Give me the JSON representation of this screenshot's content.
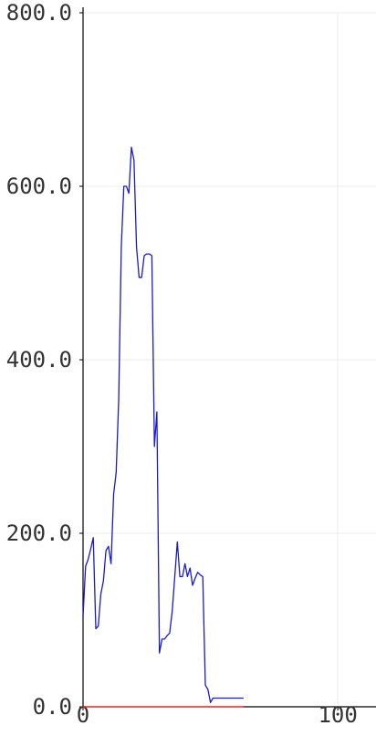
{
  "chart_data": {
    "type": "line",
    "title": "",
    "xlabel": "",
    "ylabel": "",
    "xlim": [
      0,
      115
    ],
    "ylim": [
      0,
      800
    ],
    "grid": true,
    "x_ticks": [
      0,
      100
    ],
    "x_tick_labels": [
      "0",
      "100"
    ],
    "y_ticks": [
      0,
      200,
      400,
      600,
      800
    ],
    "y_tick_labels": [
      "0.0",
      "200.0",
      "400.0",
      "600.0",
      "800.0"
    ],
    "series": [
      {
        "color": "#1a1acc",
        "x": [
          0,
          1,
          2,
          3,
          4,
          5,
          6,
          7,
          8,
          9,
          10,
          11,
          12,
          13,
          14,
          15,
          16,
          17,
          18,
          19,
          20,
          21,
          22,
          23,
          24,
          25,
          26,
          27,
          28,
          29,
          30,
          31,
          32,
          33,
          34,
          35,
          36,
          37,
          38,
          39,
          40,
          41,
          42,
          43,
          44,
          45,
          46,
          47,
          48,
          49,
          50,
          51,
          52,
          53,
          54,
          55,
          56,
          57,
          58,
          59,
          60,
          61,
          62,
          63
        ],
        "y": [
          105,
          162,
          170,
          182,
          195,
          90,
          93,
          130,
          145,
          180,
          185,
          165,
          245,
          270,
          355,
          530,
          600,
          600,
          592,
          645,
          630,
          530,
          495,
          495,
          520,
          522,
          522,
          520,
          300,
          340,
          62,
          78,
          78,
          82,
          85,
          110,
          150,
          190,
          150,
          150,
          165,
          150,
          160,
          140,
          148,
          155,
          152,
          150,
          25,
          20,
          5,
          10,
          10,
          10,
          10,
          10,
          10,
          10,
          10,
          10,
          10,
          10,
          10,
          10
        ]
      },
      {
        "color": "#ff2222",
        "x": [
          0,
          63
        ],
        "y": [
          0,
          0
        ]
      }
    ]
  }
}
